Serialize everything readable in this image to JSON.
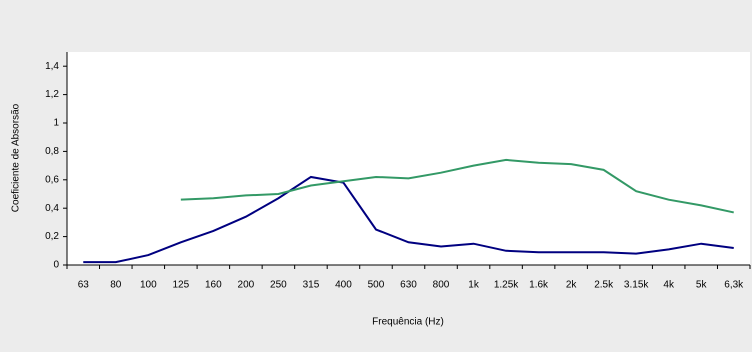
{
  "chart_data": {
    "type": "line",
    "x_label": "Frequência (Hz)",
    "y_label": "Coeficiente de Absorsão",
    "categories": [
      "63",
      "80",
      "100",
      "125",
      "160",
      "200",
      "250",
      "315",
      "400",
      "500",
      "630",
      "800",
      "1k",
      "1.25k",
      "1.6k",
      "2k",
      "2.5k",
      "3.15k",
      "4k",
      "5k",
      "6,3k"
    ],
    "series": [
      {
        "color": "#000080",
        "values": [
          0.02,
          0.02,
          0.07,
          0.16,
          0.24,
          0.34,
          0.47,
          0.62,
          0.58,
          0.25,
          0.16,
          0.13,
          0.15,
          0.1,
          0.09,
          0.09,
          0.09,
          0.08,
          0.11,
          0.15,
          0.12
        ]
      },
      {
        "color": "#339966",
        "values": [
          null,
          null,
          null,
          0.46,
          0.47,
          0.49,
          0.5,
          0.56,
          0.59,
          0.62,
          0.61,
          0.65,
          0.7,
          0.74,
          0.72,
          0.71,
          0.67,
          0.52,
          0.46,
          0.42,
          0.37
        ]
      }
    ],
    "ylim": [
      0,
      1.5
    ],
    "yticks": [
      0,
      {
        "value": 0.2,
        "label": "0,2"
      },
      {
        "value": 0.4,
        "label": "0,4"
      },
      {
        "value": 0.6,
        "label": "0,6"
      },
      {
        "value": 0.8,
        "label": "0,8"
      },
      1,
      {
        "value": 1.2,
        "label": "1,2"
      },
      {
        "value": 1.4,
        "label": "1,4"
      }
    ],
    "grid": false
  }
}
